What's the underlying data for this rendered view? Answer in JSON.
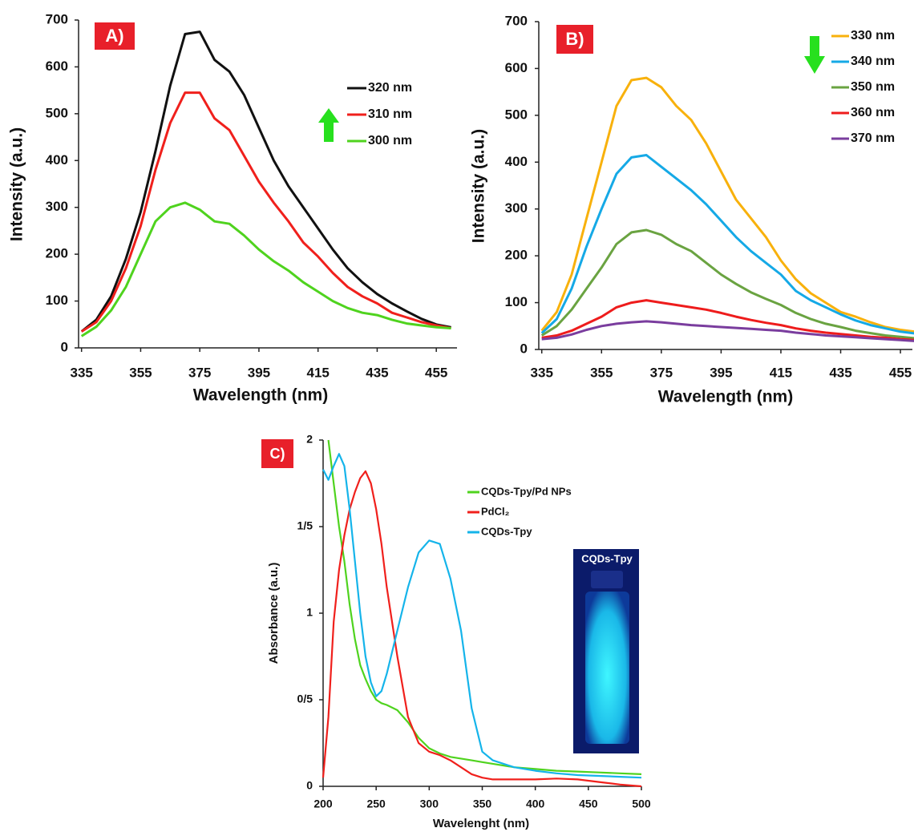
{
  "chart_data": [
    {
      "type": "line",
      "panel_label": "A)",
      "xlabel": "Wavelength (nm)",
      "ylabel": "Intensity (a.u.)",
      "x": [
        335,
        340,
        345,
        350,
        355,
        360,
        365,
        370,
        375,
        380,
        385,
        390,
        395,
        400,
        405,
        410,
        415,
        420,
        425,
        430,
        435,
        440,
        445,
        450,
        455,
        460
      ],
      "xlim": [
        334,
        462
      ],
      "xticks": [
        335,
        355,
        375,
        395,
        415,
        435,
        455
      ],
      "ylim": [
        0,
        700
      ],
      "yticks": [
        0,
        100,
        200,
        300,
        400,
        500,
        600,
        700
      ],
      "grid": false,
      "legend": "upper right",
      "series": [
        {
          "name": "320 nm",
          "color": "#111111",
          "values": [
            35,
            60,
            110,
            190,
            290,
            420,
            560,
            670,
            675,
            615,
            590,
            540,
            470,
            400,
            345,
            300,
            255,
            210,
            170,
            140,
            115,
            95,
            78,
            62,
            50,
            44
          ]
        },
        {
          "name": "310 nm",
          "color": "#f0201c",
          "values": [
            35,
            55,
            100,
            170,
            260,
            380,
            480,
            545,
            545,
            490,
            465,
            410,
            355,
            310,
            270,
            225,
            195,
            160,
            130,
            110,
            95,
            75,
            65,
            55,
            48,
            42
          ]
        },
        {
          "name": "300 nm",
          "color": "#4fd31e",
          "values": [
            25,
            45,
            80,
            130,
            200,
            270,
            300,
            310,
            295,
            270,
            265,
            240,
            210,
            185,
            165,
            140,
            120,
            100,
            85,
            75,
            70,
            60,
            52,
            48,
            44,
            42
          ]
        }
      ]
    },
    {
      "type": "line",
      "panel_label": "B)",
      "xlabel": "Wavelength (nm)",
      "ylabel": "Intensity (a.u.)",
      "x": [
        335,
        340,
        345,
        350,
        355,
        360,
        365,
        370,
        375,
        380,
        385,
        390,
        395,
        400,
        405,
        410,
        415,
        420,
        425,
        430,
        435,
        440,
        445,
        450,
        455,
        460
      ],
      "xlim": [
        334,
        459
      ],
      "xticks": [
        335,
        355,
        375,
        395,
        415,
        435,
        455
      ],
      "ylim": [
        0,
        700
      ],
      "yticks": [
        0,
        100,
        200,
        300,
        400,
        500,
        600,
        700
      ],
      "grid": false,
      "legend": "upper right",
      "series": [
        {
          "name": "330 nm",
          "color": "#f8b10c",
          "values": [
            40,
            80,
            160,
            280,
            400,
            520,
            575,
            580,
            560,
            520,
            490,
            440,
            380,
            320,
            280,
            240,
            190,
            150,
            120,
            100,
            80,
            70,
            58,
            48,
            42,
            38
          ]
        },
        {
          "name": "340 nm",
          "color": "#15a9e6",
          "values": [
            35,
            65,
            130,
            220,
            300,
            375,
            410,
            415,
            390,
            365,
            340,
            310,
            275,
            240,
            210,
            185,
            160,
            125,
            105,
            90,
            75,
            62,
            52,
            45,
            38,
            34
          ]
        },
        {
          "name": "350 nm",
          "color": "#6aa341",
          "values": [
            30,
            50,
            85,
            130,
            175,
            225,
            250,
            255,
            245,
            225,
            210,
            185,
            160,
            140,
            122,
            108,
            95,
            78,
            65,
            55,
            48,
            40,
            35,
            30,
            27,
            24
          ]
        },
        {
          "name": "360 nm",
          "color": "#ee1c1c",
          "values": [
            25,
            30,
            40,
            55,
            70,
            90,
            100,
            105,
            100,
            95,
            90,
            85,
            78,
            70,
            63,
            57,
            52,
            45,
            40,
            36,
            33,
            30,
            27,
            25,
            22,
            20
          ]
        },
        {
          "name": "370 nm",
          "color": "#7a3d9e",
          "values": [
            22,
            25,
            32,
            42,
            50,
            55,
            58,
            60,
            58,
            55,
            52,
            50,
            48,
            46,
            44,
            42,
            40,
            36,
            33,
            30,
            28,
            26,
            24,
            22,
            20,
            18
          ]
        }
      ]
    },
    {
      "type": "line",
      "panel_label": "C)",
      "xlabel": "Wavelenght (nm)",
      "ylabel": "Absorbance (a.u.)",
      "inset_label": "CQDs-Tpy",
      "x": [
        200,
        205,
        210,
        215,
        220,
        225,
        230,
        235,
        240,
        245,
        250,
        255,
        260,
        270,
        280,
        290,
        300,
        310,
        320,
        330,
        340,
        350,
        360,
        380,
        400,
        420,
        440,
        460,
        480,
        500
      ],
      "xlim": [
        200,
        500
      ],
      "xticks": [
        200,
        250,
        300,
        350,
        400,
        450,
        500
      ],
      "ylim": [
        0,
        2
      ],
      "yticks": [
        0,
        {
          "value": 0.5,
          "label": "0/5"
        },
        1,
        {
          "value": 1.5,
          "label": "1/5"
        },
        2
      ],
      "grid": false,
      "legend": "upper right",
      "series": [
        {
          "name": "CQDs-Tpy/Pd NPs",
          "color": "#4fd31e",
          "values": [
            null,
            2.0,
            1.75,
            1.5,
            1.3,
            1.05,
            0.85,
            0.7,
            0.62,
            0.55,
            0.5,
            0.48,
            0.47,
            0.44,
            0.37,
            0.28,
            0.22,
            0.19,
            0.17,
            0.16,
            0.15,
            0.14,
            0.13,
            0.11,
            0.1,
            0.09,
            0.085,
            0.08,
            0.075,
            0.07
          ]
        },
        {
          "name": "PdCl₂",
          "color": "#f0201c",
          "values": [
            0.05,
            0.4,
            0.95,
            1.25,
            1.45,
            1.6,
            1.7,
            1.78,
            1.82,
            1.75,
            1.6,
            1.4,
            1.15,
            0.75,
            0.4,
            0.25,
            0.2,
            0.18,
            0.15,
            0.11,
            0.07,
            0.05,
            0.04,
            0.04,
            0.04,
            0.045,
            0.04,
            0.025,
            0.01,
            0
          ]
        },
        {
          "name": "CQDs-Tpy",
          "color": "#15b4ea",
          "values": [
            1.83,
            1.77,
            1.85,
            1.92,
            1.85,
            1.6,
            1.3,
            1.0,
            0.75,
            0.6,
            0.52,
            0.55,
            0.65,
            0.9,
            1.15,
            1.35,
            1.42,
            1.4,
            1.2,
            0.9,
            0.45,
            0.2,
            0.15,
            0.11,
            0.09,
            0.075,
            0.065,
            0.06,
            0.055,
            0.05
          ]
        }
      ]
    }
  ]
}
